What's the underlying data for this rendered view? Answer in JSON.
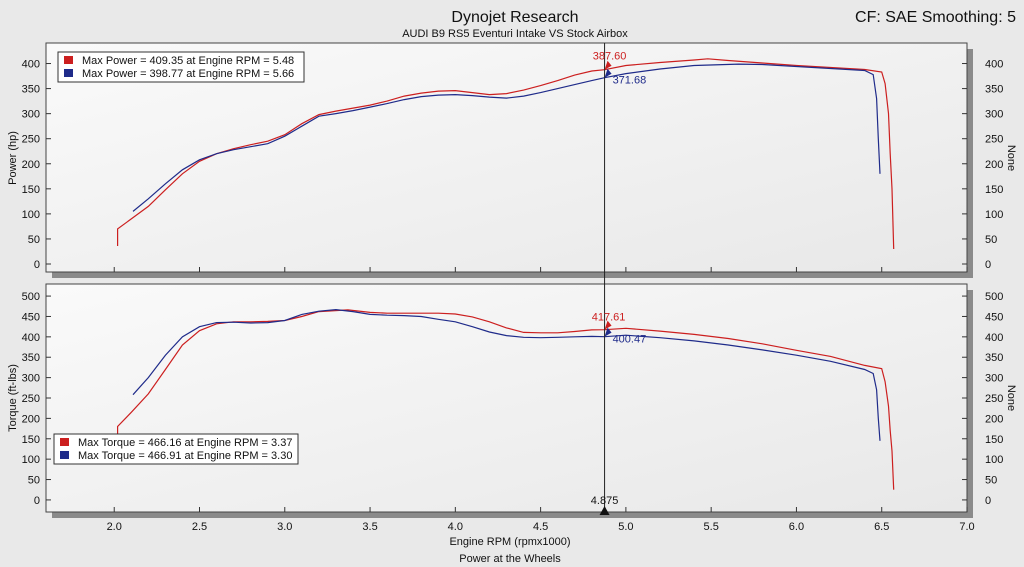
{
  "header": {
    "title": "Dynojet Research",
    "subtitle": "AUDI B9 RS5 Eventuri Intake VS Stock Airbox",
    "right_info": "CF: SAE Smoothing: 5"
  },
  "colors": {
    "red_run": "#cc1f1f",
    "blue_run": "#1f2b8a",
    "background": "#e9e9e9",
    "plot_bg": "#f3f3f3"
  },
  "footer": {
    "caption": "Power at the Wheels"
  },
  "cursor": {
    "rpm": 4.875,
    "label": "4.875"
  },
  "chart_data": [
    {
      "type": "line",
      "ylabel": "Power (hp)",
      "ylabel_right": "None",
      "ylim": [
        0,
        425
      ],
      "yticks": [
        0,
        50,
        100,
        150,
        200,
        250,
        300,
        350,
        400
      ],
      "xlim": [
        1.6,
        7.0
      ],
      "legend": [
        "Max Power = 409.35 at Engine RPM = 5.48",
        "Max Power = 398.77 at Engine RPM = 5.66"
      ],
      "cursor_labels": [
        "387.60",
        "371.68"
      ],
      "series": [
        {
          "color": "red",
          "points": [
            [
              2.02,
              36
            ],
            [
              2.02,
              70
            ],
            [
              2.1,
              90
            ],
            [
              2.2,
              115
            ],
            [
              2.3,
              148
            ],
            [
              2.4,
              180
            ],
            [
              2.5,
              205
            ],
            [
              2.6,
              220
            ],
            [
              2.7,
              230
            ],
            [
              2.8,
              238
            ],
            [
              2.9,
              245
            ],
            [
              3.0,
              258
            ],
            [
              3.1,
              280
            ],
            [
              3.2,
              298
            ],
            [
              3.3,
              305
            ],
            [
              3.4,
              311
            ],
            [
              3.5,
              317
            ],
            [
              3.6,
              325
            ],
            [
              3.7,
              335
            ],
            [
              3.8,
              341
            ],
            [
              3.9,
              345
            ],
            [
              4.0,
              346
            ],
            [
              4.1,
              342
            ],
            [
              4.2,
              338
            ],
            [
              4.3,
              340
            ],
            [
              4.4,
              347
            ],
            [
              4.5,
              356
            ],
            [
              4.6,
              366
            ],
            [
              4.7,
              377
            ],
            [
              4.8,
              385
            ],
            [
              4.875,
              387.6
            ],
            [
              5.0,
              396
            ],
            [
              5.2,
              402
            ],
            [
              5.4,
              407
            ],
            [
              5.48,
              409.35
            ],
            [
              5.6,
              406
            ],
            [
              5.8,
              401
            ],
            [
              6.0,
              396
            ],
            [
              6.2,
              392
            ],
            [
              6.4,
              388
            ],
            [
              6.5,
              383
            ],
            [
              6.52,
              360
            ],
            [
              6.54,
              300
            ],
            [
              6.55,
              220
            ],
            [
              6.56,
              150
            ],
            [
              6.57,
              30
            ]
          ]
        },
        {
          "color": "blue",
          "points": [
            [
              2.11,
              105
            ],
            [
              2.2,
              130
            ],
            [
              2.3,
              160
            ],
            [
              2.4,
              188
            ],
            [
              2.5,
              208
            ],
            [
              2.6,
              220
            ],
            [
              2.7,
              228
            ],
            [
              2.8,
              234
            ],
            [
              2.9,
              240
            ],
            [
              3.0,
              255
            ],
            [
              3.1,
              275
            ],
            [
              3.2,
              295
            ],
            [
              3.3,
              300
            ],
            [
              3.4,
              306
            ],
            [
              3.5,
              313
            ],
            [
              3.6,
              320
            ],
            [
              3.7,
              328
            ],
            [
              3.8,
              334
            ],
            [
              3.9,
              337
            ],
            [
              4.0,
              338
            ],
            [
              4.1,
              336
            ],
            [
              4.2,
              333
            ],
            [
              4.3,
              331
            ],
            [
              4.4,
              335
            ],
            [
              4.5,
              342
            ],
            [
              4.6,
              350
            ],
            [
              4.7,
              358
            ],
            [
              4.8,
              366
            ],
            [
              4.875,
              371.68
            ],
            [
              5.0,
              380
            ],
            [
              5.2,
              389
            ],
            [
              5.4,
              396
            ],
            [
              5.66,
              398.77
            ],
            [
              5.8,
              398
            ],
            [
              6.0,
              394
            ],
            [
              6.2,
              390
            ],
            [
              6.4,
              386
            ],
            [
              6.45,
              378
            ],
            [
              6.47,
              330
            ],
            [
              6.48,
              250
            ],
            [
              6.49,
              180
            ]
          ]
        }
      ]
    },
    {
      "type": "line",
      "ylabel": "Torque (ft-lbs)",
      "ylabel_right": "None",
      "ylim": [
        -10,
        510
      ],
      "yticks": [
        0,
        50,
        100,
        150,
        200,
        250,
        300,
        350,
        400,
        450,
        500
      ],
      "xlim": [
        1.6,
        7.0
      ],
      "xlabel": "Engine RPM (rpmx1000)",
      "xticks": [
        "2.0",
        "2.5",
        "3.0",
        "3.5",
        "4.0",
        "4.5",
        "5.0",
        "5.5",
        "6.0",
        "6.5",
        "7.0"
      ],
      "legend": [
        "Max Torque = 466.16 at Engine RPM = 3.37",
        "Max Torque = 466.91 at Engine RPM = 3.30"
      ],
      "cursor_labels": [
        "417.61",
        "400.47"
      ],
      "series": [
        {
          "color": "red",
          "points": [
            [
              2.02,
              160
            ],
            [
              2.02,
              180
            ],
            [
              2.1,
              215
            ],
            [
              2.2,
              260
            ],
            [
              2.3,
              320
            ],
            [
              2.4,
              380
            ],
            [
              2.5,
              415
            ],
            [
              2.6,
              432
            ],
            [
              2.7,
              437
            ],
            [
              2.8,
              437
            ],
            [
              2.9,
              438
            ],
            [
              3.0,
              440
            ],
            [
              3.1,
              450
            ],
            [
              3.2,
              462
            ],
            [
              3.37,
              466.16
            ],
            [
              3.5,
              460
            ],
            [
              3.6,
              458
            ],
            [
              3.7,
              458
            ],
            [
              3.8,
              458
            ],
            [
              3.9,
              458
            ],
            [
              4.0,
              456
            ],
            [
              4.1,
              449
            ],
            [
              4.2,
              437
            ],
            [
              4.3,
              422
            ],
            [
              4.4,
              411
            ],
            [
              4.5,
              410
            ],
            [
              4.6,
              410
            ],
            [
              4.7,
              413
            ],
            [
              4.8,
              417
            ],
            [
              4.875,
              417.61
            ],
            [
              5.0,
              421
            ],
            [
              5.2,
              414
            ],
            [
              5.4,
              406
            ],
            [
              5.6,
              396
            ],
            [
              5.8,
              383
            ],
            [
              6.0,
              367
            ],
            [
              6.2,
              352
            ],
            [
              6.4,
              330
            ],
            [
              6.5,
              322
            ],
            [
              6.52,
              290
            ],
            [
              6.54,
              230
            ],
            [
              6.55,
              170
            ],
            [
              6.56,
              120
            ],
            [
              6.57,
              25
            ]
          ]
        },
        {
          "color": "blue",
          "points": [
            [
              2.11,
              258
            ],
            [
              2.2,
              300
            ],
            [
              2.3,
              355
            ],
            [
              2.4,
              400
            ],
            [
              2.5,
              425
            ],
            [
              2.6,
              435
            ],
            [
              2.7,
              436
            ],
            [
              2.8,
              434
            ],
            [
              2.9,
              435
            ],
            [
              3.0,
              440
            ],
            [
              3.1,
              455
            ],
            [
              3.2,
              463
            ],
            [
              3.3,
              466.91
            ],
            [
              3.4,
              462
            ],
            [
              3.5,
              455
            ],
            [
              3.6,
              453
            ],
            [
              3.7,
              452
            ],
            [
              3.8,
              450
            ],
            [
              3.9,
              443
            ],
            [
              4.0,
              437
            ],
            [
              4.1,
              425
            ],
            [
              4.2,
              412
            ],
            [
              4.3,
              403
            ],
            [
              4.4,
              399
            ],
            [
              4.5,
              398
            ],
            [
              4.6,
              399
            ],
            [
              4.7,
              400
            ],
            [
              4.8,
              401
            ],
            [
              4.875,
              400.47
            ],
            [
              5.0,
              404
            ],
            [
              5.2,
              398
            ],
            [
              5.4,
              390
            ],
            [
              5.6,
              380
            ],
            [
              5.8,
              368
            ],
            [
              6.0,
              355
            ],
            [
              6.2,
              340
            ],
            [
              6.4,
              320
            ],
            [
              6.45,
              310
            ],
            [
              6.47,
              270
            ],
            [
              6.48,
              200
            ],
            [
              6.49,
              145
            ]
          ]
        }
      ]
    }
  ]
}
